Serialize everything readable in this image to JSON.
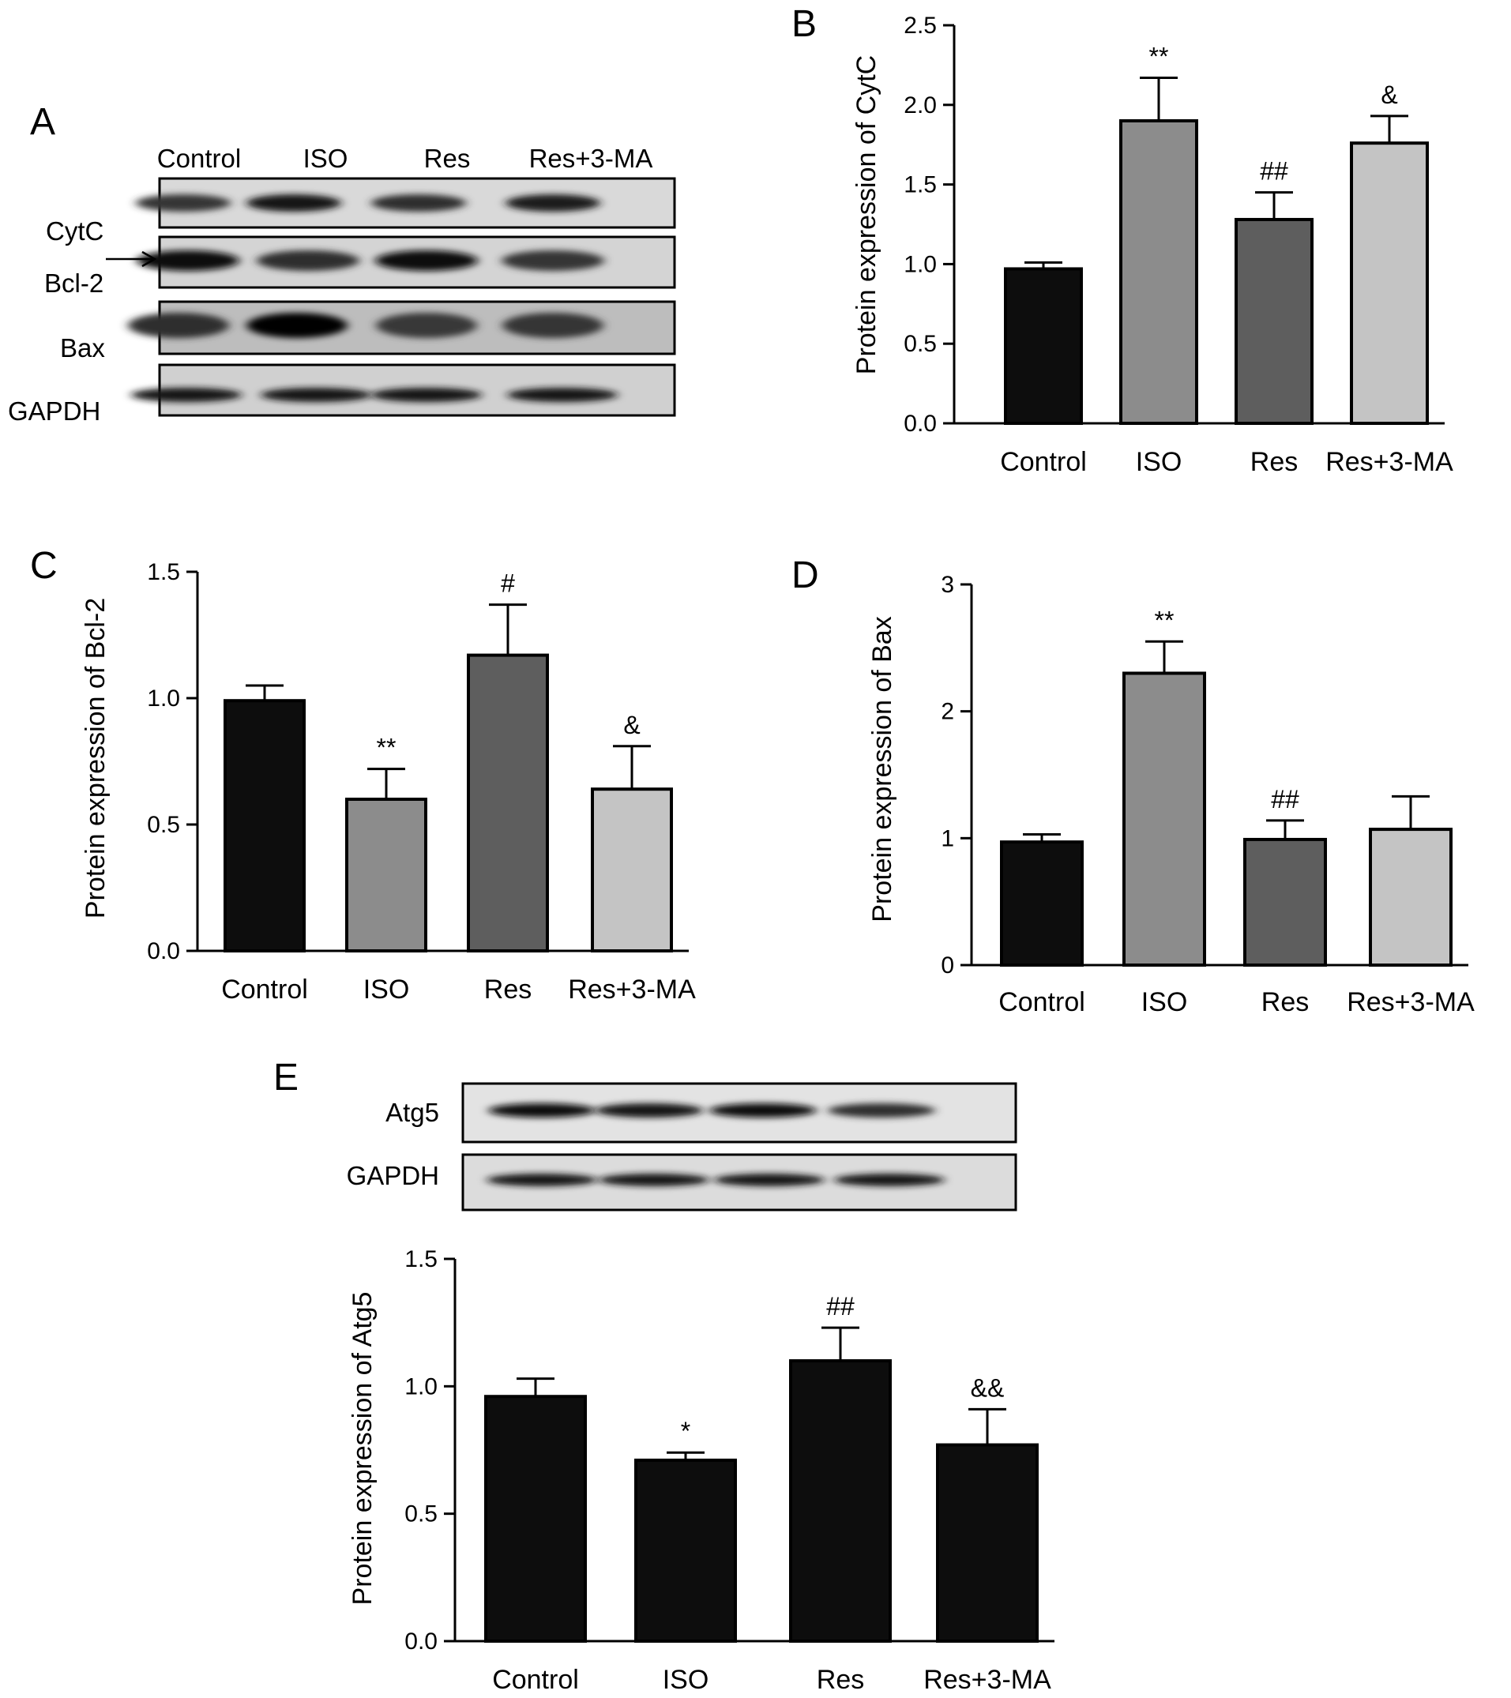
{
  "figure": {
    "panel_A": {
      "label": "A",
      "lanes": [
        "Control",
        "ISO",
        "Res",
        "Res+3-MA"
      ],
      "rows": [
        {
          "name": "CytC",
          "intensity": [
            0.55,
            0.8,
            0.6,
            0.75
          ]
        },
        {
          "name": "Bcl-2",
          "intensity": [
            0.85,
            0.6,
            0.9,
            0.55
          ]
        },
        {
          "name": "Bax",
          "intensity": [
            0.6,
            0.95,
            0.5,
            0.55
          ]
        },
        {
          "name": "GAPDH",
          "intensity": [
            0.8,
            0.8,
            0.8,
            0.8
          ]
        }
      ]
    },
    "panel_E_blot": {
      "rows": [
        {
          "name": "Atg5",
          "intensity": [
            0.85,
            0.8,
            0.85,
            0.6
          ]
        },
        {
          "name": "GAPDH",
          "intensity": [
            0.8,
            0.8,
            0.8,
            0.8
          ]
        }
      ]
    }
  },
  "chart_data": [
    {
      "panel": "B",
      "type": "bar",
      "categories": [
        "Control",
        "ISO",
        "Res",
        "Res+3-MA"
      ],
      "values": [
        0.97,
        1.9,
        1.28,
        1.76
      ],
      "errors": [
        0.04,
        0.27,
        0.17,
        0.17
      ],
      "significance": [
        "",
        "**",
        "##",
        "&"
      ],
      "colors": [
        "#0d0d0d",
        "#8c8c8c",
        "#5e5e5e",
        "#c4c4c4"
      ],
      "ylabel": "Protein expression of CytC",
      "ylim": [
        0,
        2.5
      ],
      "yticks": [
        "0.0",
        "0.5",
        "1.0",
        "1.5",
        "2.0",
        "2.5"
      ],
      "ytick_values": [
        0,
        0.5,
        1.0,
        1.5,
        2.0,
        2.5
      ]
    },
    {
      "panel": "C",
      "type": "bar",
      "categories": [
        "Control",
        "ISO",
        "Res",
        "Res+3-MA"
      ],
      "values": [
        0.99,
        0.6,
        1.17,
        0.64
      ],
      "errors": [
        0.06,
        0.12,
        0.2,
        0.17
      ],
      "significance": [
        "",
        "**",
        "#",
        "&"
      ],
      "colors": [
        "#0d0d0d",
        "#8c8c8c",
        "#5e5e5e",
        "#c4c4c4"
      ],
      "ylabel": "Protein expression of Bcl-2",
      "ylim": [
        0,
        1.5
      ],
      "yticks": [
        "0.0",
        "0.5",
        "1.0",
        "1.5"
      ],
      "ytick_values": [
        0,
        0.5,
        1.0,
        1.5
      ]
    },
    {
      "panel": "D",
      "type": "bar",
      "categories": [
        "Control",
        "ISO",
        "Res",
        "Res+3-MA"
      ],
      "values": [
        0.97,
        2.3,
        0.99,
        1.07
      ],
      "errors": [
        0.06,
        0.25,
        0.15,
        0.26
      ],
      "significance": [
        "",
        "**",
        "##",
        ""
      ],
      "colors": [
        "#0d0d0d",
        "#8c8c8c",
        "#5e5e5e",
        "#c4c4c4"
      ],
      "ylabel": "Protein expression of Bax",
      "ylim": [
        0,
        3
      ],
      "yticks": [
        "0",
        "1",
        "2",
        "3"
      ],
      "ytick_values": [
        0,
        1,
        2,
        3
      ]
    },
    {
      "panel": "E",
      "type": "bar",
      "categories": [
        "Control",
        "ISO",
        "Res",
        "Res+3-MA"
      ],
      "values": [
        0.96,
        0.71,
        1.1,
        0.77
      ],
      "errors": [
        0.07,
        0.03,
        0.13,
        0.14
      ],
      "significance": [
        "",
        "*",
        "##",
        "&&"
      ],
      "colors": [
        "#0d0d0d",
        "#0d0d0d",
        "#0d0d0d",
        "#0d0d0d"
      ],
      "ylabel": "Protein expression of Atg5",
      "ylim": [
        0,
        1.5
      ],
      "yticks": [
        "0.0",
        "0.5",
        "1.0",
        "1.5"
      ],
      "ytick_values": [
        0,
        0.5,
        1.0,
        1.5
      ]
    }
  ]
}
